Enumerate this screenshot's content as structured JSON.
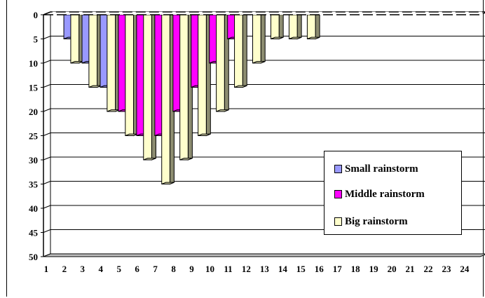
{
  "chart_data": {
    "type": "bar",
    "orientation": "inverted-y",
    "categories": [
      "1",
      "2",
      "3",
      "4",
      "5",
      "6",
      "7",
      "8",
      "9",
      "10",
      "11",
      "12",
      "13",
      "14",
      "15",
      "16",
      "17",
      "18",
      "19",
      "20",
      "21",
      "22",
      "23",
      "24"
    ],
    "series": [
      {
        "name": "Small rainstorm",
        "color": "#9999FF",
        "values": [
          0,
          5,
          10,
          15,
          10,
          5,
          5,
          0,
          0,
          0,
          0,
          0,
          0,
          0,
          0,
          0,
          0,
          0,
          0,
          0,
          0,
          0,
          0,
          0
        ]
      },
      {
        "name": "Middle rainstorm",
        "color": "#FF00FF",
        "values": [
          0,
          0,
          0,
          0,
          20,
          25,
          25,
          20,
          15,
          10,
          5,
          0,
          0,
          0,
          0,
          0,
          0,
          0,
          0,
          0,
          0,
          0,
          0,
          0
        ]
      },
      {
        "name": "Big rainstorm",
        "color": "#FFFFCC",
        "values": [
          0,
          10,
          15,
          20,
          25,
          30,
          35,
          30,
          25,
          20,
          15,
          10,
          5,
          5,
          5,
          0,
          0,
          0,
          0,
          0,
          0,
          0,
          0,
          0
        ]
      }
    ],
    "yticks": [
      "0",
      "5",
      "10",
      "15",
      "20",
      "25",
      "30",
      "35",
      "40",
      "45",
      "50"
    ],
    "ylim": [
      0,
      50
    ],
    "grid": true,
    "legend_position": "right"
  }
}
